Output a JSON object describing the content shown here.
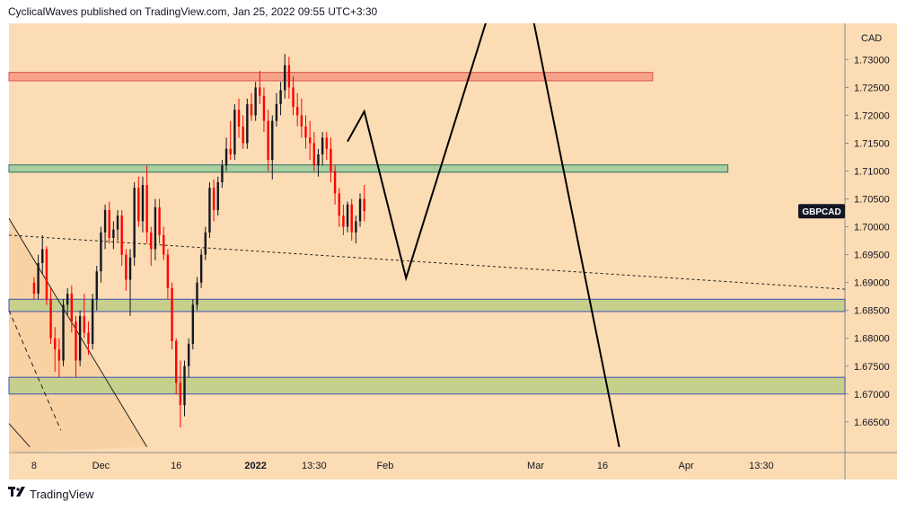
{
  "header": {
    "publisher_line": "CyclicalWaves published on TradingView.com, Jan 25, 2022 09:55 UTC+3:30"
  },
  "footer": {
    "logo_icon": "tradingview-logo-icon",
    "logo_text": "TradingView"
  },
  "colors": {
    "background": "#ffffff",
    "plot_bg": "#fcdcb4",
    "candle_up": "#131722",
    "candle_down": "#ff0000",
    "resistance_zone": "#f7a38a",
    "mid_zone": "#a9cfa0",
    "support_zone": "#c6cf8c",
    "wave_line": "#000000"
  },
  "chart_data": {
    "type": "candlestick",
    "symbol": "GBPCAD",
    "currency_label": "CAD",
    "y_ticks": [
      "1.73000",
      "1.72500",
      "1.72000",
      "1.71500",
      "1.71000",
      "1.70500",
      "1.70000",
      "1.69500",
      "1.69000",
      "1.68500",
      "1.68000",
      "1.67500",
      "1.67000",
      "1.66500"
    ],
    "y_tick_values": [
      1.73,
      1.725,
      1.72,
      1.715,
      1.71,
      1.705,
      1.7,
      1.695,
      1.69,
      1.685,
      1.68,
      1.675,
      1.67,
      1.665
    ],
    "ylim": [
      1.6595,
      1.7365
    ],
    "x_ticks": [
      "8",
      "Dec",
      "16",
      "2022",
      "13:30",
      "Feb",
      "Mar",
      "16",
      "Apr",
      "13:30"
    ],
    "x_tick_positions": [
      0,
      8,
      17,
      26.5,
      33.5,
      42,
      60,
      68,
      78,
      87
    ],
    "xlim": [
      -3,
      97
    ],
    "last_price_label": "GBPCAD",
    "last_price": 1.7028,
    "zones": [
      {
        "name": "resistance",
        "from": 1.7262,
        "to": 1.7277,
        "start": -3,
        "end": 74
      },
      {
        "name": "mid",
        "from": 1.7098,
        "to": 1.7111,
        "start": -3,
        "end": 83
      },
      {
        "name": "support-upper",
        "from": 1.6848,
        "to": 1.687,
        "start": -3,
        "end": 97
      },
      {
        "name": "support-lower",
        "from": 1.67,
        "to": 1.673,
        "start": -3,
        "end": 97
      }
    ],
    "dashed_trendline": [
      [
        -3,
        1.6985
      ],
      [
        97,
        1.6888
      ]
    ],
    "channel_lines": [
      {
        "style": "solid",
        "points": [
          [
            -3,
            1.7015
          ],
          [
            13.5,
            1.6605
          ]
        ]
      },
      {
        "style": "solid",
        "points": [
          [
            -3,
            1.6647
          ],
          [
            -0.5,
            1.6605
          ]
        ]
      },
      {
        "style": "dashed",
        "points": [
          [
            -3,
            1.685
          ],
          [
            3.2,
            1.6635
          ]
        ]
      }
    ],
    "wave_projection": [
      [
        37.5,
        1.7153
      ],
      [
        39.5,
        1.7207
      ],
      [
        44.5,
        1.6908
      ],
      [
        54.5,
        1.7388
      ],
      [
        59.5,
        1.7388
      ],
      [
        70,
        1.6605
      ]
    ],
    "candles": [
      [
        1.69,
        1.691,
        1.687,
        1.688
      ],
      [
        1.688,
        1.695,
        1.687,
        1.6935
      ],
      [
        1.6935,
        1.6985,
        1.6915,
        1.696
      ],
      [
        1.696,
        1.6965,
        1.686,
        1.687
      ],
      [
        1.687,
        1.689,
        1.679,
        1.68
      ],
      [
        1.68,
        1.682,
        1.674,
        1.678
      ],
      [
        1.678,
        1.68,
        1.673,
        1.676
      ],
      [
        1.676,
        1.687,
        1.675,
        1.686
      ],
      [
        1.686,
        1.689,
        1.684,
        1.688
      ],
      [
        1.688,
        1.6895,
        1.681,
        1.683
      ],
      [
        1.683,
        1.684,
        1.673,
        1.676
      ],
      [
        1.676,
        1.685,
        1.675,
        1.684
      ],
      [
        1.684,
        1.688,
        1.68,
        1.681
      ],
      [
        1.681,
        1.683,
        1.677,
        1.679
      ],
      [
        1.679,
        1.688,
        1.678,
        1.687
      ],
      [
        1.687,
        1.693,
        1.685,
        1.692
      ],
      [
        1.692,
        1.7,
        1.69,
        1.699
      ],
      [
        1.699,
        1.704,
        1.696,
        1.703
      ],
      [
        1.703,
        1.7045,
        1.697,
        1.698
      ],
      [
        1.698,
        1.701,
        1.696,
        1.6995
      ],
      [
        1.6995,
        1.703,
        1.6975,
        1.702
      ],
      [
        1.702,
        1.703,
        1.693,
        1.695
      ],
      [
        1.695,
        1.696,
        1.6885,
        1.6905
      ],
      [
        1.6905,
        1.696,
        1.684,
        1.6945
      ],
      [
        1.6945,
        1.708,
        1.693,
        1.707
      ],
      [
        1.707,
        1.709,
        1.7,
        1.701
      ],
      [
        1.701,
        1.709,
        1.699,
        1.7075
      ],
      [
        1.7075,
        1.711,
        1.697,
        1.699
      ],
      [
        1.699,
        1.7,
        1.693,
        1.696
      ],
      [
        1.696,
        1.705,
        1.694,
        1.7035
      ],
      [
        1.7035,
        1.705,
        1.697,
        1.6985
      ],
      [
        1.6985,
        1.7,
        1.694,
        1.695
      ],
      [
        1.695,
        1.696,
        1.687,
        1.689
      ],
      [
        1.689,
        1.69,
        1.678,
        1.6795
      ],
      [
        1.6795,
        1.68,
        1.67,
        1.672
      ],
      [
        1.672,
        1.676,
        1.664,
        1.668
      ],
      [
        1.668,
        1.676,
        1.666,
        1.675
      ],
      [
        1.675,
        1.68,
        1.673,
        1.679
      ],
      [
        1.679,
        1.687,
        1.678,
        1.686
      ],
      [
        1.686,
        1.691,
        1.685,
        1.69
      ],
      [
        1.69,
        1.696,
        1.689,
        1.695
      ],
      [
        1.695,
        1.7,
        1.694,
        1.699
      ],
      [
        1.699,
        1.708,
        1.698,
        1.707
      ],
      [
        1.707,
        1.7085,
        1.701,
        1.703
      ],
      [
        1.703,
        1.709,
        1.702,
        1.708
      ],
      [
        1.708,
        1.712,
        1.707,
        1.711
      ],
      [
        1.711,
        1.716,
        1.71,
        1.714
      ],
      [
        1.714,
        1.719,
        1.712,
        1.713
      ],
      [
        1.713,
        1.722,
        1.712,
        1.721
      ],
      [
        1.721,
        1.723,
        1.716,
        1.718
      ],
      [
        1.718,
        1.72,
        1.714,
        1.715
      ],
      [
        1.715,
        1.723,
        1.714,
        1.722
      ],
      [
        1.722,
        1.724,
        1.719,
        1.72
      ],
      [
        1.72,
        1.726,
        1.719,
        1.725
      ],
      [
        1.725,
        1.728,
        1.722,
        1.7235
      ],
      [
        1.7235,
        1.725,
        1.717,
        1.719
      ],
      [
        1.719,
        1.721,
        1.71,
        1.712
      ],
      [
        1.712,
        1.72,
        1.7085,
        1.719
      ],
      [
        1.719,
        1.724,
        1.718,
        1.722
      ],
      [
        1.722,
        1.726,
        1.72,
        1.7245
      ],
      [
        1.7245,
        1.731,
        1.723,
        1.729
      ],
      [
        1.729,
        1.7305,
        1.723,
        1.725
      ],
      [
        1.725,
        1.727,
        1.72,
        1.7215
      ],
      [
        1.7215,
        1.724,
        1.718,
        1.72
      ],
      [
        1.72,
        1.723,
        1.716,
        1.718
      ],
      [
        1.718,
        1.72,
        1.714,
        1.716
      ],
      [
        1.716,
        1.719,
        1.712,
        1.715
      ],
      [
        1.715,
        1.717,
        1.71,
        1.711
      ],
      [
        1.711,
        1.714,
        1.709,
        1.713
      ],
      [
        1.713,
        1.717,
        1.711,
        1.716
      ],
      [
        1.716,
        1.717,
        1.712,
        1.714
      ],
      [
        1.714,
        1.716,
        1.708,
        1.71
      ],
      [
        1.71,
        1.711,
        1.704,
        1.706
      ],
      [
        1.706,
        1.707,
        1.7,
        1.702
      ],
      [
        1.702,
        1.704,
        1.6985,
        1.7
      ],
      [
        1.7,
        1.7045,
        1.699,
        1.704
      ],
      [
        1.704,
        1.705,
        1.6975,
        1.699
      ],
      [
        1.699,
        1.702,
        1.697,
        1.701
      ],
      [
        1.701,
        1.706,
        1.7,
        1.705
      ],
      [
        1.705,
        1.7075,
        1.701,
        1.7028
      ]
    ]
  }
}
